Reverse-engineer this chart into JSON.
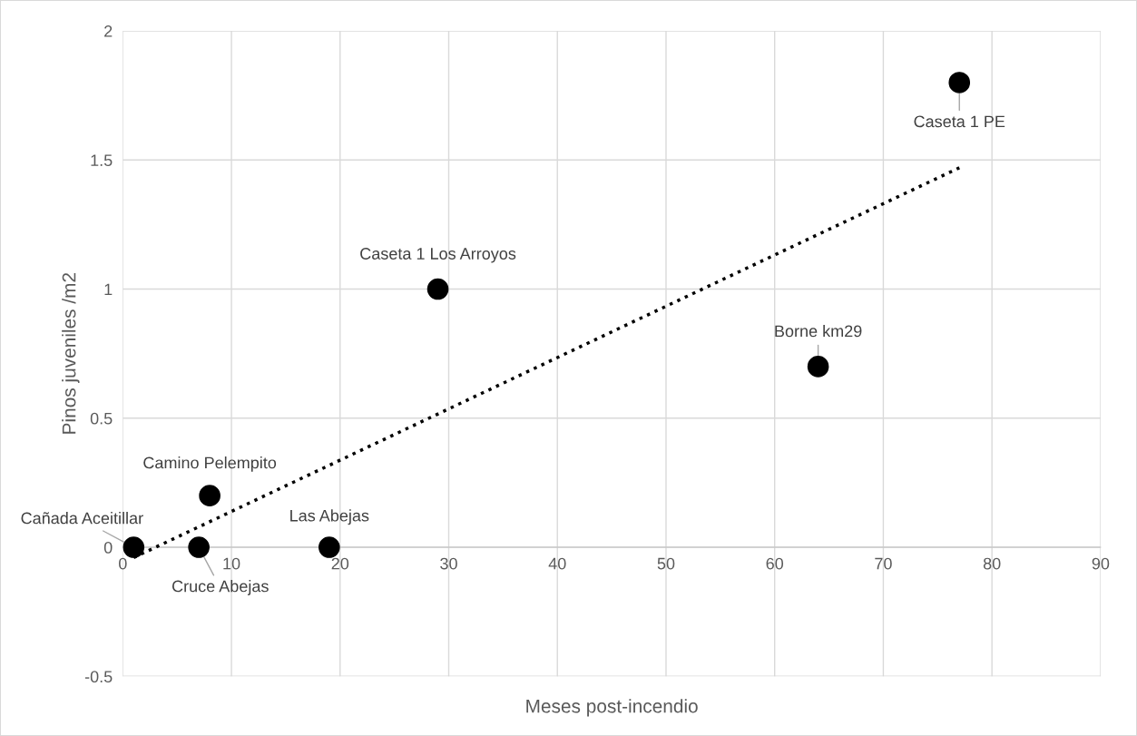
{
  "chart_data": {
    "type": "scatter",
    "xlabel": "Meses post-incendio",
    "ylabel": "Pinos juveniles /m2",
    "series": [
      {
        "color": "#000000",
        "marker": "circle",
        "x": [
          1,
          7,
          8,
          19,
          29,
          64,
          77
        ],
        "values": [
          0,
          0,
          0.2,
          0,
          1.0,
          0.7,
          1.8
        ]
      },
      {
        "type": "line",
        "color": "#000000",
        "line_style": "dotted",
        "x": [
          1,
          77
        ],
        "values": [
          -0.04,
          1.47
        ]
      }
    ],
    "annotations": [
      {
        "text": "Cañada Aceitillar",
        "x": 1,
        "y": 0
      },
      {
        "text": "Cruce Abejas",
        "x": 7,
        "y": 0
      },
      {
        "text": "Camino Pelempito",
        "x": 8,
        "y": 0.2
      },
      {
        "text": "Las Abejas",
        "x": 19,
        "y": 0
      },
      {
        "text": "Caseta 1 Los Arroyos",
        "x": 29,
        "y": 1.0
      },
      {
        "text": "Borne km29",
        "x": 64,
        "y": 0.7
      },
      {
        "text": "Caseta 1 PE",
        "x": 77,
        "y": 1.8
      }
    ],
    "xlim": [
      0,
      90
    ],
    "xticks": [
      0,
      10,
      20,
      30,
      40,
      50,
      60,
      70,
      80,
      90
    ],
    "ylim": [
      -0.5,
      2
    ],
    "yticks": [
      -0.5,
      0,
      0.5,
      1,
      1.5,
      2
    ],
    "grid": true,
    "legend": false
  }
}
